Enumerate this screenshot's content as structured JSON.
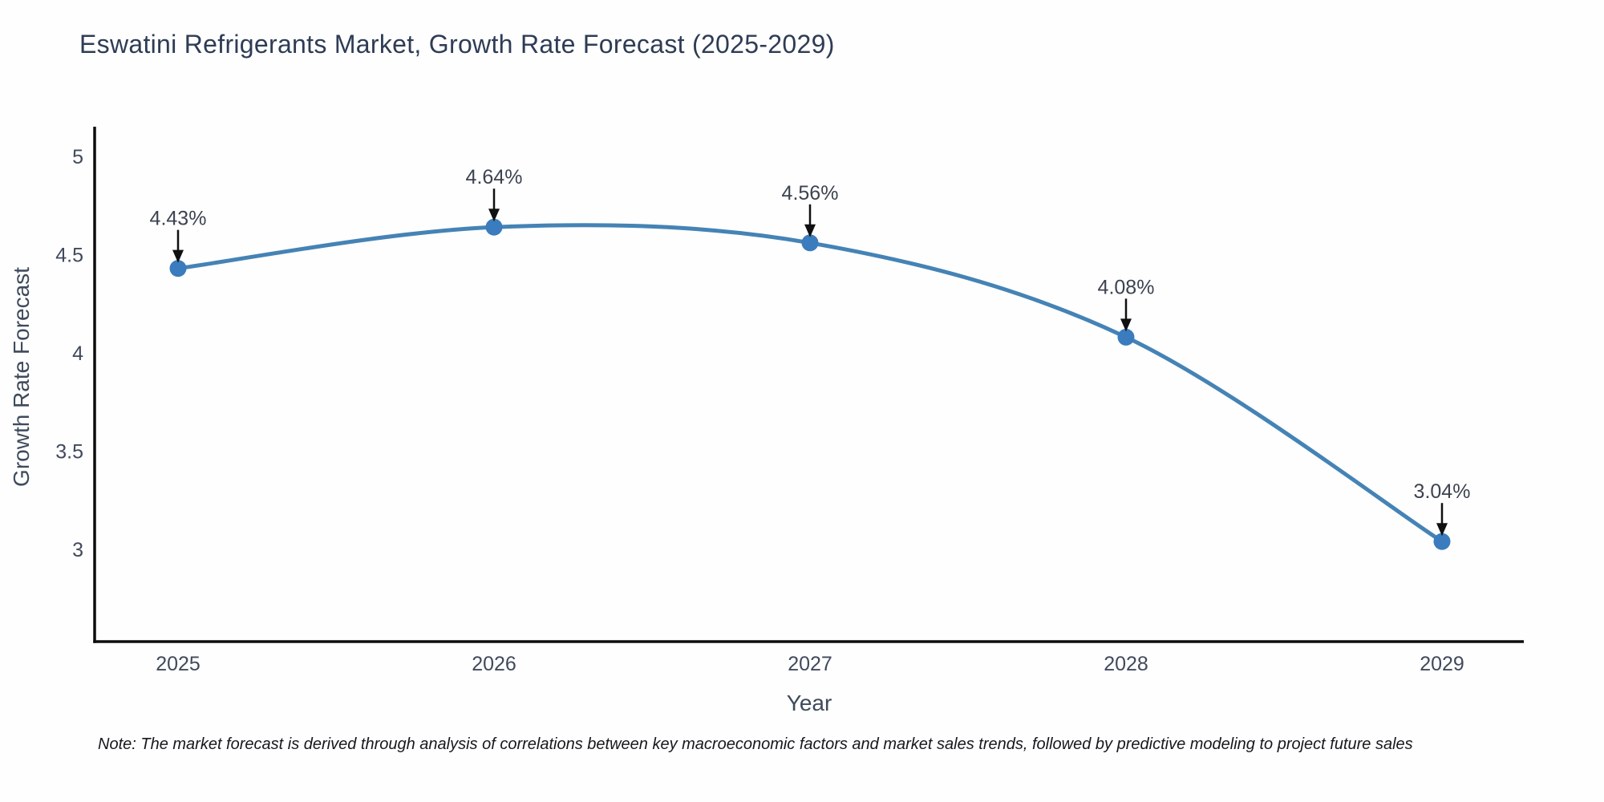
{
  "chart_data": {
    "type": "line",
    "title": "Eswatini Refrigerants Market, Growth Rate Forecast (2025-2029)",
    "xlabel": "Year",
    "ylabel": "Growth Rate Forecast",
    "x": [
      2025,
      2026,
      2027,
      2028,
      2029
    ],
    "values": [
      4.43,
      4.64,
      4.56,
      4.08,
      3.04
    ],
    "point_labels": [
      "4.43%",
      "4.64%",
      "4.56%",
      "4.08%",
      "3.04%"
    ],
    "y_ticks": [
      3,
      3.5,
      4,
      4.5,
      5
    ],
    "y_tick_labels": [
      "3",
      "3.5",
      "4",
      "4.5",
      "5"
    ],
    "ylim": [
      2.5,
      5.15
    ],
    "grid": false,
    "legend": false,
    "marker_style": "circle",
    "annotation_style": "downward-arrow",
    "colors": {
      "line": "#4583b5",
      "marker": "#3a7cbd",
      "axis": "#0d0d0d",
      "tick": "#404a5c",
      "axis_title": "#3f4a5c",
      "point_label": "#3c4350",
      "arrow": "#101010",
      "title": "#2e3c55",
      "background": "#fefefe"
    }
  },
  "note": "Note: The market forecast is derived through analysis of correlations between key macroeconomic factors and market sales trends, followed by predictive modeling to project future sales"
}
